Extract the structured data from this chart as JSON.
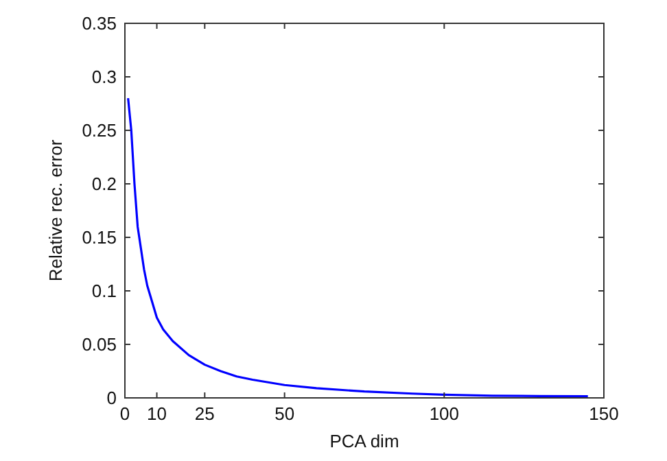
{
  "chart_data": {
    "type": "line",
    "xlabel": "PCA dim",
    "ylabel": "Relative rec. error",
    "xlim": [
      0,
      150
    ],
    "xticks": [
      0,
      10,
      25,
      50,
      100,
      150
    ],
    "ylim": [
      0,
      0.35
    ],
    "yticks": [
      0,
      0.05,
      0.1,
      0.15,
      0.2,
      0.25,
      0.3,
      0.35
    ],
    "grid": false,
    "series": [
      {
        "color": "#0000ff",
        "x": [
          1,
          2,
          3,
          4,
          5,
          6,
          7,
          8,
          10,
          12,
          15,
          20,
          25,
          30,
          35,
          40,
          50,
          60,
          75,
          90,
          100,
          115,
          130,
          145
        ],
        "values": [
          0.28,
          0.25,
          0.2,
          0.16,
          0.14,
          0.12,
          0.105,
          0.095,
          0.075,
          0.064,
          0.053,
          0.04,
          0.031,
          0.025,
          0.02,
          0.017,
          0.012,
          0.009,
          0.006,
          0.004,
          0.003,
          0.002,
          0.0017,
          0.0015
        ]
      }
    ]
  }
}
